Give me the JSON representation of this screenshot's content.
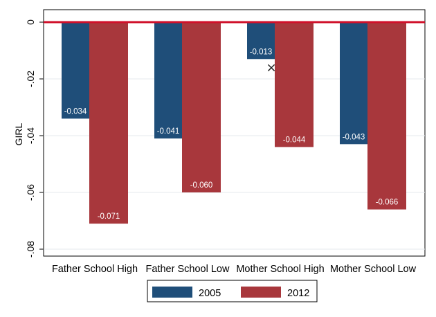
{
  "chart_data": {
    "type": "bar",
    "categories": [
      "Father School High",
      "Father School Low",
      "Mother School High",
      "Mother School Low"
    ],
    "series": [
      {
        "name": "2005",
        "color": "#1f4e79",
        "values": [
          -0.034,
          -0.041,
          -0.013,
          -0.043
        ],
        "labels": [
          "-0.034",
          "-0.041",
          "-0.013",
          "-0.043"
        ]
      },
      {
        "name": "2012",
        "color": "#a8373c",
        "values": [
          -0.071,
          -0.06,
          -0.044,
          -0.066
        ],
        "labels": [
          "-0.071",
          "-0.060",
          "-0.044",
          "-0.066"
        ]
      }
    ],
    "ylabel": "GIRL",
    "xlabel": "",
    "ylim": [
      -0.085,
      0.004
    ],
    "yticks": [
      0,
      -0.02,
      -0.04,
      -0.06,
      -0.08
    ],
    "ytick_labels": [
      "0",
      "-.02",
      "-.04",
      "-.06",
      "-.08"
    ],
    "reference_line": {
      "value": 0,
      "color": "#d0102a"
    },
    "grid": true,
    "legend": {
      "position": "bottom",
      "entries": [
        "2005",
        "2012"
      ]
    },
    "annotation": {
      "symbol": "×",
      "category": "Mother School High",
      "value": -0.016
    }
  }
}
